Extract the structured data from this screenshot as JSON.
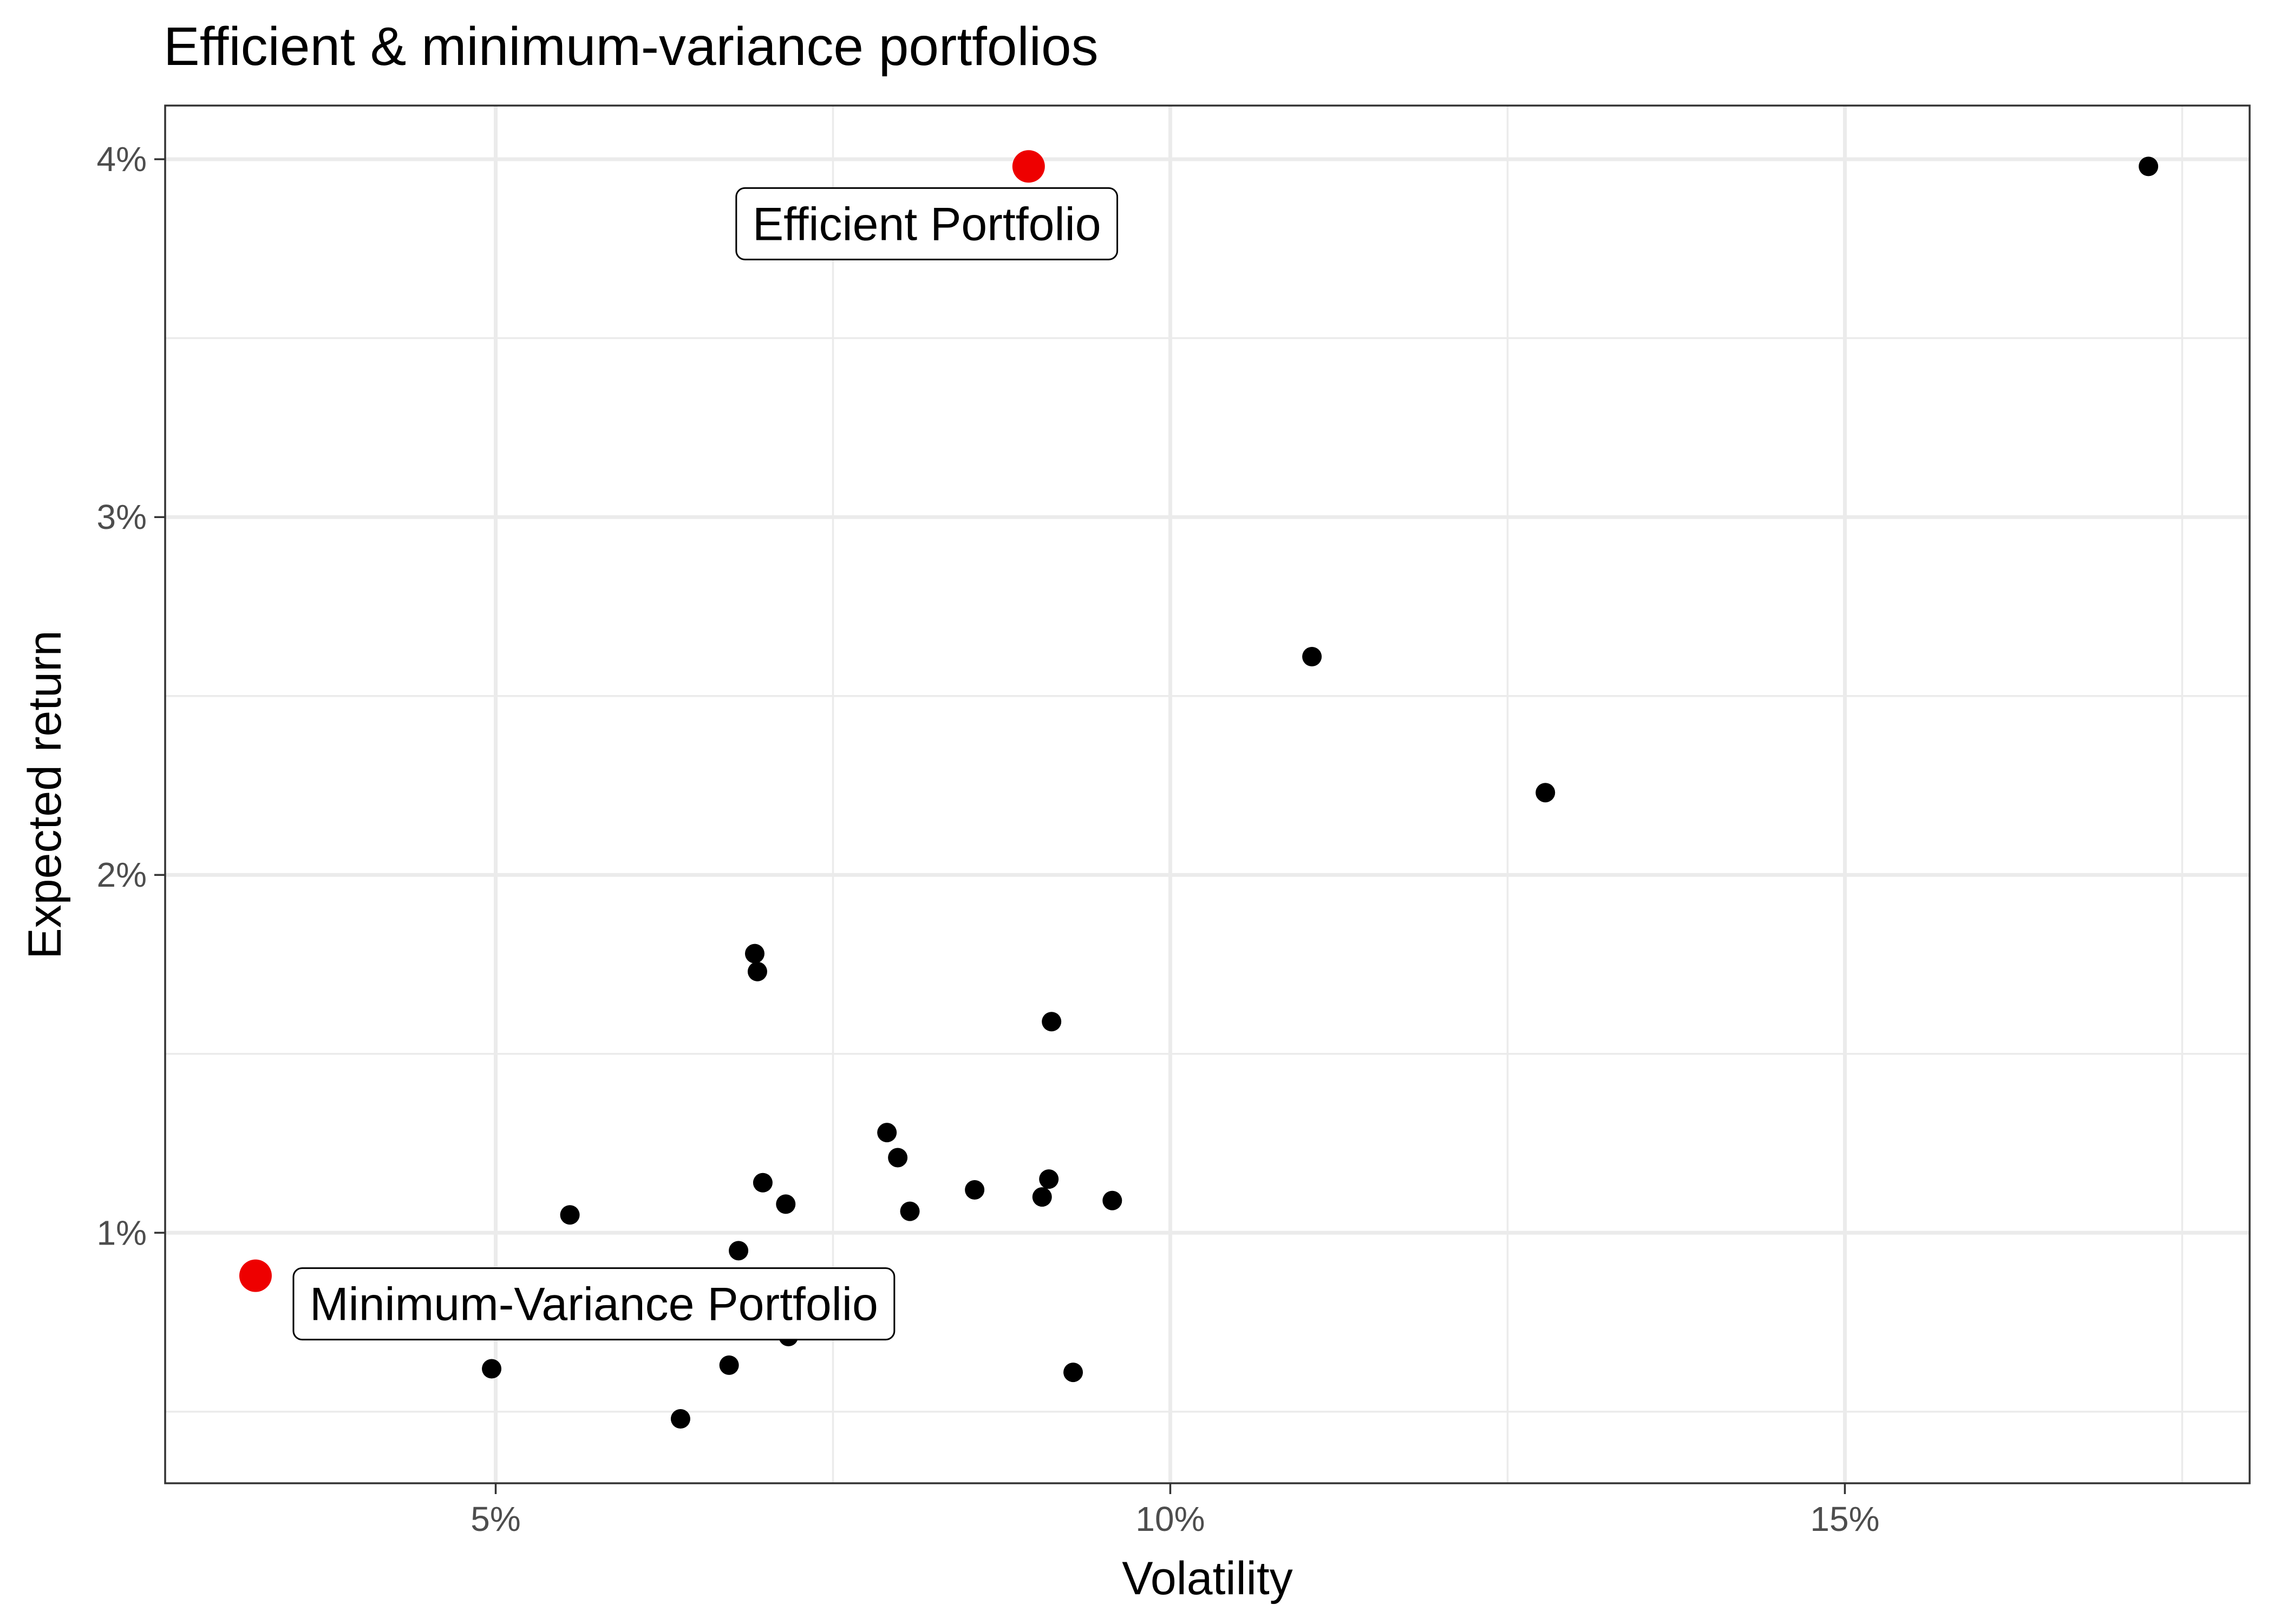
{
  "chart_data": {
    "type": "scatter",
    "title": "Efficient & minimum-variance portfolios",
    "xlabel": "Volatility",
    "ylabel": "Expected return",
    "xlim": [
      2.55,
      18.0
    ],
    "ylim": [
      0.3,
      4.15
    ],
    "x_ticks": [
      5,
      10,
      15
    ],
    "x_tick_labels": [
      "5%",
      "10%",
      "15%"
    ],
    "y_ticks": [
      1,
      2,
      3,
      4
    ],
    "y_tick_labels": [
      "1%",
      "2%",
      "3%",
      "4%"
    ],
    "grid": true,
    "legend": "none",
    "colors": {
      "points": "#000000",
      "highlight": "#ee0000",
      "grid": "#ebebeb"
    },
    "series": [
      {
        "x": [
          4.7,
          4.97,
          5.08,
          5.55,
          6.37,
          6.73,
          6.8,
          6.92,
          6.94,
          6.98,
          7.15,
          7.17,
          7.75,
          7.9,
          7.98,
          8.07,
          8.55,
          9.05,
          9.1,
          9.12,
          9.28,
          9.57,
          11.05,
          12.78,
          17.25
        ],
        "y": [
          0.74,
          0.62,
          0.77,
          1.05,
          0.48,
          0.63,
          0.95,
          1.78,
          1.73,
          1.14,
          1.08,
          0.71,
          0.77,
          1.28,
          1.21,
          1.06,
          1.12,
          1.1,
          1.15,
          1.59,
          0.61,
          1.09,
          2.61,
          2.23,
          3.98
        ]
      },
      {
        "labels": [
          "Efficient Portfolio",
          "Minimum-Variance Portfolio"
        ],
        "x": [
          8.95,
          3.22
        ],
        "y": [
          3.98,
          0.88
        ]
      }
    ]
  }
}
